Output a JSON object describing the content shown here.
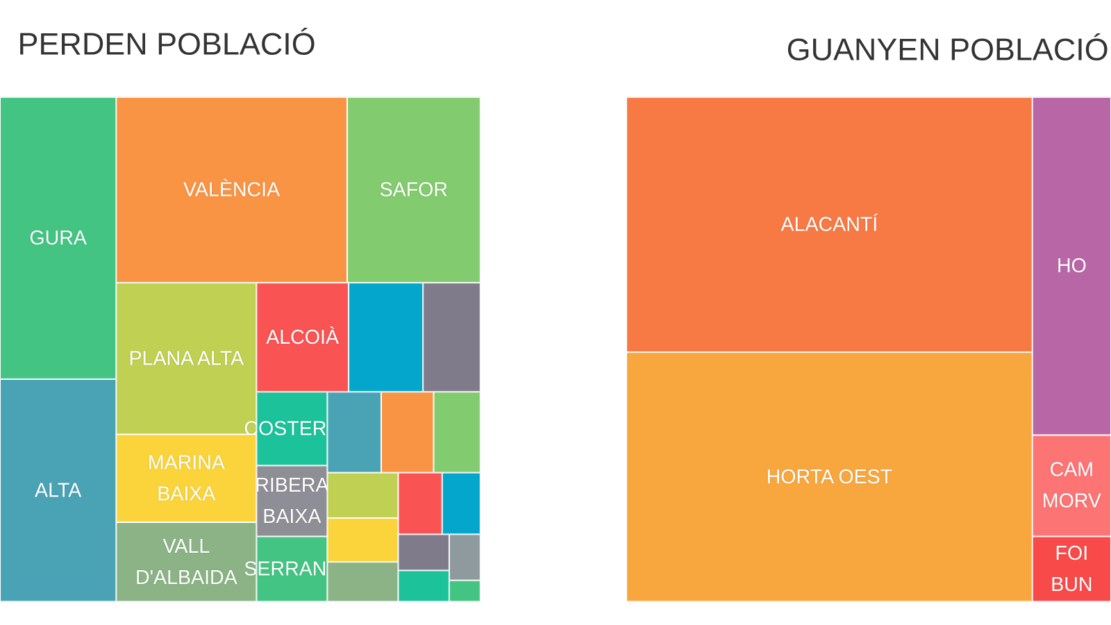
{
  "chart_data": [
    {
      "type": "treemap",
      "title": "PERDEN POBLACIÓ",
      "categories": [
        "GURA",
        "ALTA",
        "VALÈNCIA",
        "SAFOR",
        "PLANA ALTA",
        "MARINA\nBAIXA",
        "VALL\nD'ALBAIDA",
        "ALCOIÀ",
        null,
        null,
        "COSTERA",
        "RIBERA\nBAIXA",
        "SERRANS",
        null,
        null,
        null,
        null,
        null,
        null,
        null,
        null,
        null,
        null,
        null,
        null
      ],
      "values": [
        653,
        515,
        854,
        493,
        424,
        246,
        222,
        200,
        162,
        125,
        104,
        100,
        92,
        87,
        84,
        75,
        64,
        62,
        56,
        54,
        47,
        37,
        32,
        29,
        13
      ],
      "colors": [
        "#44c483",
        "#4aa3b5",
        "#f99444",
        "#82cb6e",
        "#bfd052",
        "#fad43a",
        "#8bb385",
        "#f95353",
        "#04a6cb",
        "#7f7b8a",
        "#1cc29a",
        "#8e8e96",
        "#44c483",
        "#4aa3b5",
        "#f99444",
        "#82cb6e",
        "#bfd052",
        "#fad43a",
        "#8bb385",
        "#f95353",
        "#04a6cb",
        "#7f7b8a",
        "#1cc29a",
        "#8e9a9e",
        "#44c483"
      ]
    },
    {
      "type": "treemap",
      "title": "GUANYEN POBLACIÓ",
      "categories": [
        "ALACANTÍ",
        "HORTA OEST",
        "HO",
        "CAM\nMORV",
        "FOI\nBUN"
      ],
      "values": [
        2063,
        2017,
        529,
        159,
        102
      ],
      "colors": [
        "#f77a45",
        "#f8a73e",
        "#b966a7",
        "#fc7474",
        "#f94a4a"
      ]
    }
  ]
}
